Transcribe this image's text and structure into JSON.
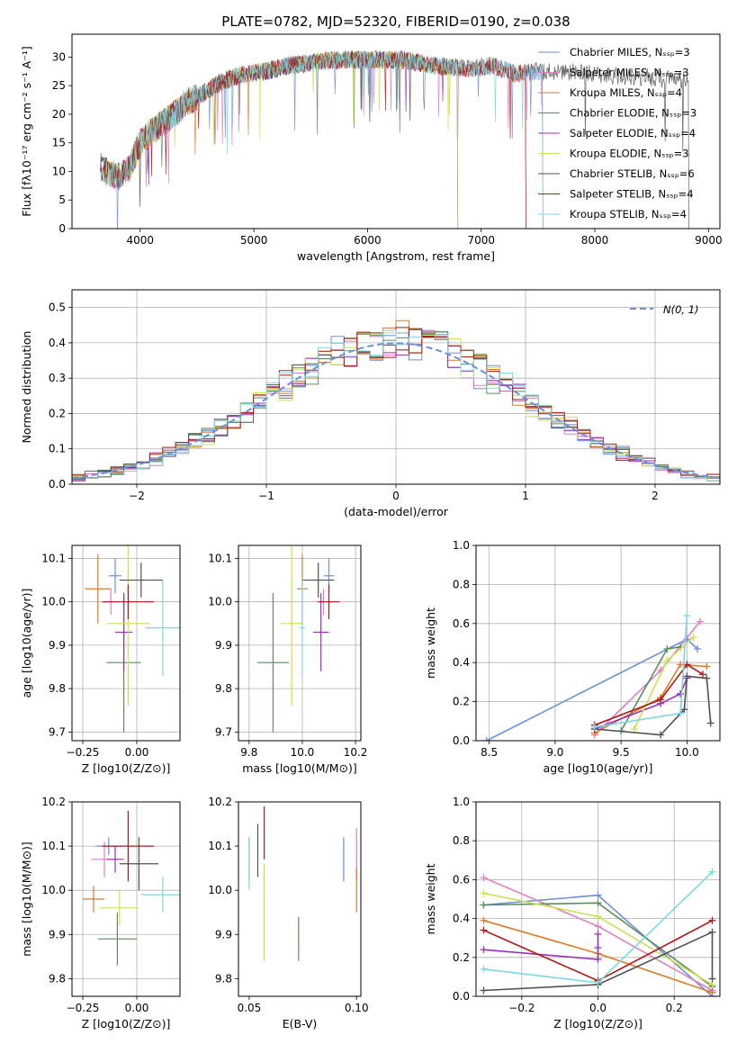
{
  "chart_data": [
    {
      "id": "spectrum",
      "type": "line",
      "title": "PLATE=0782, MJD=52320, FIBERID=0190, z=0.038",
      "xlabel": "wavelength [Angstrom, rest frame]",
      "ylabel": "Flux [fλ10⁻¹⁷ erg cm⁻² s⁻¹ A⁻¹]",
      "xlim": [
        3400,
        9100
      ],
      "ylim": [
        0,
        34
      ],
      "xticks": [
        4000,
        5000,
        6000,
        7000,
        8000,
        9000
      ],
      "yticks": [
        0,
        5,
        10,
        15,
        20,
        25,
        30
      ],
      "grid": false,
      "legend": "top-right",
      "continuum": {
        "x": [
          3650,
          3700,
          3800,
          3900,
          4000,
          4100,
          4200,
          4300,
          4400,
          4500,
          4700,
          4900,
          5100,
          5300,
          5500,
          5700,
          6000,
          6300,
          6600,
          6900,
          7100,
          7300,
          7500,
          7800,
          8100,
          8400,
          8700,
          8830
        ],
        "y": [
          11,
          10,
          9,
          10.5,
          15,
          17,
          18.5,
          20,
          22,
          23,
          25.5,
          27,
          27.5,
          28.5,
          29,
          29.5,
          29.5,
          29.5,
          28.5,
          28,
          28.5,
          27,
          27.5,
          27.5,
          26.8,
          26.5,
          26,
          26
        ]
      },
      "series": [
        {
          "name": "Chabrier MILES, N_SSP=3",
          "color": "#6a8ee0",
          "xmax": 7550
        },
        {
          "name": "Salpeter MILES, N_SSP=3",
          "color": "#e07ec0",
          "xmax": 7550
        },
        {
          "name": "Kroupa MILES, N_SSP=4",
          "color": "#e07a28",
          "xmax": 7400
        },
        {
          "name": "Chabrier ELODIE, N_SSP=3",
          "color": "#5e8c5e",
          "xmax": 6800
        },
        {
          "name": "Salpeter ELODIE, N_SSP=4",
          "color": "#9c30b4",
          "xmax": 6800
        },
        {
          "name": "Kroupa ELODIE, N_SSP=3",
          "color": "#cce050",
          "xmax": 6800
        },
        {
          "name": "Chabrier STELIB, N_SSP=6",
          "color": "#505050",
          "xmax": 8830
        },
        {
          "name": "Salpeter STELIB, N_SSP=4",
          "color": "#b01818",
          "xmax": 7400
        },
        {
          "name": "Kroupa STELIB, N_SSP=4",
          "color": "#7ad8e0",
          "xmax": 7550
        }
      ]
    },
    {
      "id": "residuals",
      "type": "bar",
      "xlabel": "(data-model)/error",
      "ylabel": "Normed distribution",
      "xlim": [
        -2.5,
        2.5
      ],
      "ylim": [
        0,
        0.55
      ],
      "xticks": [
        -2,
        -1,
        0,
        1,
        2
      ],
      "yticks": [
        0.0,
        0.1,
        0.2,
        0.3,
        0.4,
        0.5
      ],
      "grid": true,
      "legend": "top-right",
      "reference_curve": {
        "name": "N(0, 1)",
        "color": "#6a8ee0",
        "style": "dashed"
      },
      "bin_width": 0.1,
      "bin_start": -2.5
    },
    {
      "id": "age-vs-Z",
      "type": "scatter",
      "xlabel": "Z [log10(Z/Z⊙)]",
      "ylabel": "age [log10(age/yr)]",
      "xlim": [
        -0.3,
        0.2
      ],
      "ylim": [
        9.68,
        10.13
      ],
      "xticks": [
        -0.25,
        0.0
      ],
      "yticks": [
        9.7,
        9.8,
        9.9,
        10.0,
        10.1
      ],
      "grid": true,
      "points": [
        {
          "color": "#6a8ee0",
          "x": -0.1,
          "y": 10.06,
          "xerr": 0.03,
          "yerr": 0.04
        },
        {
          "color": "#e07ec0",
          "x": -0.12,
          "y": 10.0,
          "xerr": 0.04,
          "yerr": 0.03
        },
        {
          "color": "#e07a28",
          "x": -0.18,
          "y": 10.03,
          "xerr": 0.06,
          "yerr": 0.08
        },
        {
          "color": "#5e8c5e",
          "x": -0.06,
          "y": 9.86,
          "xerr": 0.08,
          "yerr": 0.16
        },
        {
          "color": "#9c30b4",
          "x": -0.06,
          "y": 9.93,
          "xerr": 0.04,
          "yerr": 0.09
        },
        {
          "color": "#cce050",
          "x": -0.04,
          "y": 9.95,
          "xerr": 0.1,
          "yerr": 0.19
        },
        {
          "color": "#505050",
          "x": 0.02,
          "y": 10.05,
          "xerr": 0.1,
          "yerr": 0.04
        },
        {
          "color": "#b01818",
          "x": -0.04,
          "y": 10.0,
          "xerr": 0.12,
          "yerr": 0.04
        },
        {
          "color": "#7ad8e0",
          "x": 0.12,
          "y": 9.94,
          "xerr": 0.08,
          "yerr": 0.11
        }
      ]
    },
    {
      "id": "age-vs-mass",
      "type": "scatter",
      "xlabel": "mass [log10(M/M⊙)]",
      "ylabel": "",
      "xlim": [
        9.76,
        10.22
      ],
      "ylim": [
        9.68,
        10.13
      ],
      "xticks": [
        9.8,
        10.0,
        10.2
      ],
      "yticks": [
        9.7,
        9.8,
        9.9,
        10.0,
        10.1
      ],
      "grid": true,
      "points": [
        {
          "color": "#6a8ee0",
          "x": 10.1,
          "y": 10.06,
          "xerr": 0.02,
          "yerr": 0.04
        },
        {
          "color": "#e07ec0",
          "x": 10.08,
          "y": 10.0,
          "xerr": 0.03,
          "yerr": 0.03
        },
        {
          "color": "#e07a28",
          "x": 10.0,
          "y": 10.03,
          "xerr": 0.02,
          "yerr": 0.08
        },
        {
          "color": "#5e8c5e",
          "x": 9.89,
          "y": 9.86,
          "xerr": 0.06,
          "yerr": 0.16
        },
        {
          "color": "#9c30b4",
          "x": 10.07,
          "y": 9.93,
          "xerr": 0.03,
          "yerr": 0.09
        },
        {
          "color": "#cce050",
          "x": 9.96,
          "y": 9.95,
          "xerr": 0.04,
          "yerr": 0.19
        },
        {
          "color": "#505050",
          "x": 10.06,
          "y": 10.05,
          "xerr": 0.06,
          "yerr": 0.04
        },
        {
          "color": "#b01818",
          "x": 10.1,
          "y": 10.0,
          "xerr": 0.04,
          "yerr": 0.04
        },
        {
          "color": "#7ad8e0",
          "x": 10.0,
          "y": 9.94,
          "xerr": 0.01,
          "yerr": 0.11
        }
      ]
    },
    {
      "id": "weight-vs-age",
      "type": "line",
      "xlabel": "age [log10(age/yr)]",
      "ylabel": "mass weight",
      "xlim": [
        8.4,
        10.25
      ],
      "ylim": [
        0,
        1
      ],
      "xticks": [
        8.5,
        9.0,
        9.5,
        10.0
      ],
      "yticks": [
        0.0,
        0.2,
        0.4,
        0.6,
        0.8,
        1.0
      ],
      "grid": true,
      "series": [
        {
          "color": "#6a8ee0",
          "x": [
            8.48,
            10.0,
            10.08
          ],
          "y": [
            0.0,
            0.52,
            0.47
          ]
        },
        {
          "color": "#e07ec0",
          "x": [
            9.3,
            9.8,
            10.1
          ],
          "y": [
            0.03,
            0.36,
            0.61
          ]
        },
        {
          "color": "#e07a28",
          "x": [
            9.3,
            9.8,
            9.95,
            10.15
          ],
          "y": [
            0.04,
            0.22,
            0.39,
            0.38
          ]
        },
        {
          "color": "#5e8c5e",
          "x": [
            9.5,
            9.85,
            9.95
          ],
          "y": [
            0.05,
            0.47,
            0.48
          ]
        },
        {
          "color": "#9c30b4",
          "x": [
            9.3,
            9.8,
            9.95,
            10.0
          ],
          "y": [
            0.06,
            0.19,
            0.24,
            0.32
          ]
        },
        {
          "color": "#cce050",
          "x": [
            9.6,
            9.85,
            10.05
          ],
          "y": [
            0.06,
            0.41,
            0.53
          ]
        },
        {
          "color": "#505050",
          "x": [
            9.3,
            9.8,
            9.98,
            10.0,
            10.15,
            10.18
          ],
          "y": [
            0.06,
            0.03,
            0.16,
            0.33,
            0.32,
            0.09
          ]
        },
        {
          "color": "#b01818",
          "x": [
            9.3,
            9.8,
            10.0,
            10.12
          ],
          "y": [
            0.08,
            0.21,
            0.39,
            0.34
          ]
        },
        {
          "color": "#7ad8e0",
          "x": [
            9.3,
            9.95,
            10.0
          ],
          "y": [
            0.07,
            0.14,
            0.64
          ]
        }
      ]
    },
    {
      "id": "mass-vs-Z",
      "type": "scatter",
      "xlabel": "Z [log10(Z/Z⊙)]",
      "ylabel": "mass [log10(M/M⊙)]",
      "xlim": [
        -0.3,
        0.2
      ],
      "ylim": [
        9.76,
        10.2
      ],
      "xticks": [
        -0.25,
        0.0
      ],
      "yticks": [
        9.8,
        9.9,
        10.0,
        10.1,
        10.2
      ],
      "grid": true,
      "points": [
        {
          "color": "#6a8ee0",
          "x": -0.13,
          "y": 10.1,
          "xerr": 0.06,
          "yerr": 0.02
        },
        {
          "color": "#e07ec0",
          "x": -0.15,
          "y": 10.07,
          "xerr": 0.06,
          "yerr": 0.04
        },
        {
          "color": "#e07a28",
          "x": -0.2,
          "y": 9.98,
          "xerr": 0.05,
          "yerr": 0.03
        },
        {
          "color": "#5e8c5e",
          "x": -0.09,
          "y": 9.89,
          "xerr": 0.09,
          "yerr": 0.06
        },
        {
          "color": "#9c30b4",
          "x": -0.1,
          "y": 10.07,
          "xerr": 0.04,
          "yerr": 0.03
        },
        {
          "color": "#cce050",
          "x": -0.08,
          "y": 9.96,
          "xerr": 0.09,
          "yerr": 0.04
        },
        {
          "color": "#505050",
          "x": 0.01,
          "y": 10.06,
          "xerr": 0.09,
          "yerr": 0.06
        },
        {
          "color": "#b01818",
          "x": -0.04,
          "y": 10.1,
          "xerr": 0.12,
          "yerr": 0.08
        },
        {
          "color": "#7ad8e0",
          "x": 0.12,
          "y": 9.99,
          "xerr": 0.1,
          "yerr": 0.04
        }
      ]
    },
    {
      "id": "mass-vs-EBV",
      "type": "scatter",
      "xlabel": "E(B-V)",
      "ylabel": "",
      "xlim": [
        0.045,
        0.102
      ],
      "ylim": [
        9.76,
        10.2
      ],
      "xticks": [
        0.05,
        0.1
      ],
      "yticks": [
        9.8,
        9.9,
        10.0,
        10.1,
        10.2
      ],
      "grid": false,
      "points": [
        {
          "color": "#6a8ee0",
          "x": 0.094,
          "y": 10.07,
          "xerr": 0,
          "yerr": 0.05
        },
        {
          "color": "#e07ec0",
          "x": 0.1,
          "y": 10.08,
          "xerr": 0,
          "yerr": 0.06
        },
        {
          "color": "#e07a28",
          "x": 0.1,
          "y": 10.0,
          "xerr": 0,
          "yerr": 0.05
        },
        {
          "color": "#5e8c5e",
          "x": 0.073,
          "y": 9.89,
          "xerr": 0,
          "yerr": 0.05
        },
        {
          "color": "#9c30b4",
          "x": 0.05,
          "y": 10.07,
          "xerr": 0,
          "yerr": 0.05
        },
        {
          "color": "#cce050",
          "x": 0.057,
          "y": 9.95,
          "xerr": 0,
          "yerr": 0.11
        },
        {
          "color": "#505050",
          "x": 0.054,
          "y": 10.09,
          "xerr": 0,
          "yerr": 0.06
        },
        {
          "color": "#b01818",
          "x": 0.057,
          "y": 10.13,
          "xerr": 0,
          "yerr": 0.06
        },
        {
          "color": "#7ad8e0",
          "x": 0.05,
          "y": 10.06,
          "xerr": 0,
          "yerr": 0.06
        }
      ]
    },
    {
      "id": "weight-vs-Z",
      "type": "line",
      "xlabel": "Z [log10(Z/Z⊙)]",
      "ylabel": "mass weight",
      "xlim": [
        -0.32,
        0.32
      ],
      "ylim": [
        0,
        1
      ],
      "xticks": [
        -0.2,
        0.0,
        0.2
      ],
      "yticks": [
        0.0,
        0.2,
        0.4,
        0.6,
        0.8,
        1.0
      ],
      "grid": true,
      "series": [
        {
          "color": "#6a8ee0",
          "x": [
            -0.3,
            0.0,
            0.3
          ],
          "y": [
            0.47,
            0.52,
            0.0
          ]
        },
        {
          "color": "#e07ec0",
          "x": [
            -0.3,
            0.0,
            0.3
          ],
          "y": [
            0.61,
            0.36,
            0.03
          ]
        },
        {
          "color": "#e07a28",
          "x": [
            -0.3,
            0.0,
            0.3
          ],
          "y": [
            0.39,
            0.22,
            0.02
          ]
        },
        {
          "color": "#5e8c5e",
          "x": [
            -0.3,
            0.0,
            0.3
          ],
          "y": [
            0.47,
            0.48,
            0.05
          ]
        },
        {
          "color": "#9c30b4",
          "x": [
            -0.3,
            0.0,
            0.0,
            0.0
          ],
          "y": [
            0.24,
            0.19,
            0.32,
            0.25
          ]
        },
        {
          "color": "#cce050",
          "x": [
            -0.3,
            0.0,
            0.3
          ],
          "y": [
            0.53,
            0.41,
            0.06
          ]
        },
        {
          "color": "#505050",
          "x": [
            -0.3,
            0.0,
            0.3,
            0.3
          ],
          "y": [
            0.03,
            0.06,
            0.33,
            0.09
          ]
        },
        {
          "color": "#b01818",
          "x": [
            -0.3,
            0.0,
            0.3
          ],
          "y": [
            0.34,
            0.08,
            0.39
          ]
        },
        {
          "color": "#7ad8e0",
          "x": [
            -0.3,
            0.0,
            0.3
          ],
          "y": [
            0.14,
            0.07,
            0.64
          ]
        }
      ]
    }
  ]
}
